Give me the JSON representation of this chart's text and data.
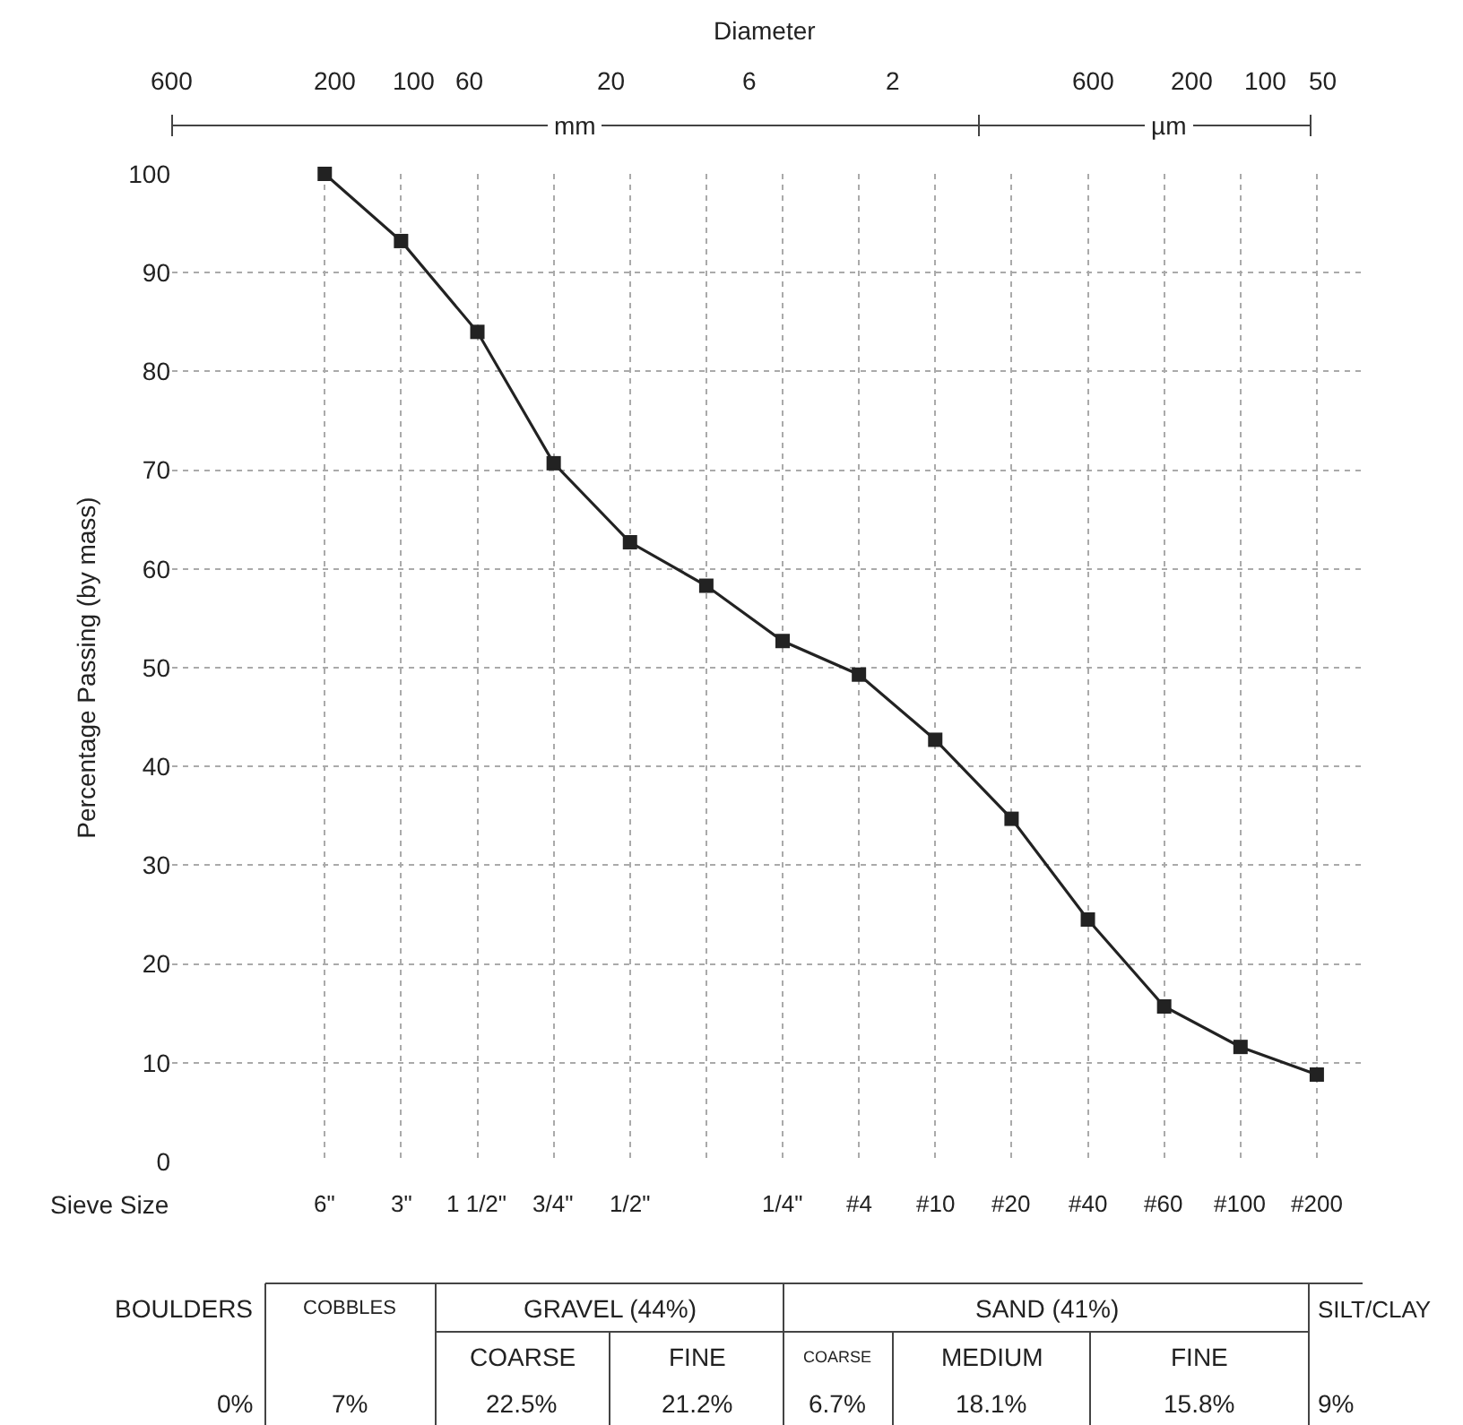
{
  "chart_data": {
    "type": "line",
    "xlabel": "Sieve Size",
    "ylabel": "Percentage Passing (by mass)",
    "categories": [
      "6\"",
      "3\"",
      "1 1/2\"",
      "3/4\"",
      "1/2\"",
      null,
      "1/4\"",
      "#4",
      "#10",
      "#20",
      "#40",
      "#60",
      "#100",
      "#200"
    ],
    "series": [
      {
        "color": "#222222",
        "values": [
          100,
          93.2,
          84,
          70.7,
          62.7,
          58.3,
          52.7,
          49.3,
          42.7,
          34.7,
          24.5,
          15.7,
          11.6,
          8.8
        ]
      }
    ],
    "ylim": [
      0,
      100
    ],
    "yticks": [
      0,
      10,
      20,
      30,
      40,
      50,
      60,
      70,
      80,
      90,
      100
    ],
    "grid": true,
    "marker": "square",
    "line_style": "solid",
    "annotations": [
      "BOULDERS",
      "COBBLES",
      "GRAVEL (44%)",
      "SAND (41%)",
      "SILT/CLAY",
      "COARSE",
      "FINE",
      "COARSE",
      "MEDIUM",
      "FINE",
      "0%",
      "7%",
      "22.5%",
      "21.2%",
      "6.7%",
      "18.1%",
      "15.8%",
      "9%",
      "Diameter",
      "600",
      "200",
      "100",
      "60",
      "20",
      "6",
      "2",
      "mm",
      "600",
      "200",
      "100",
      "50",
      "µm"
    ]
  }
}
